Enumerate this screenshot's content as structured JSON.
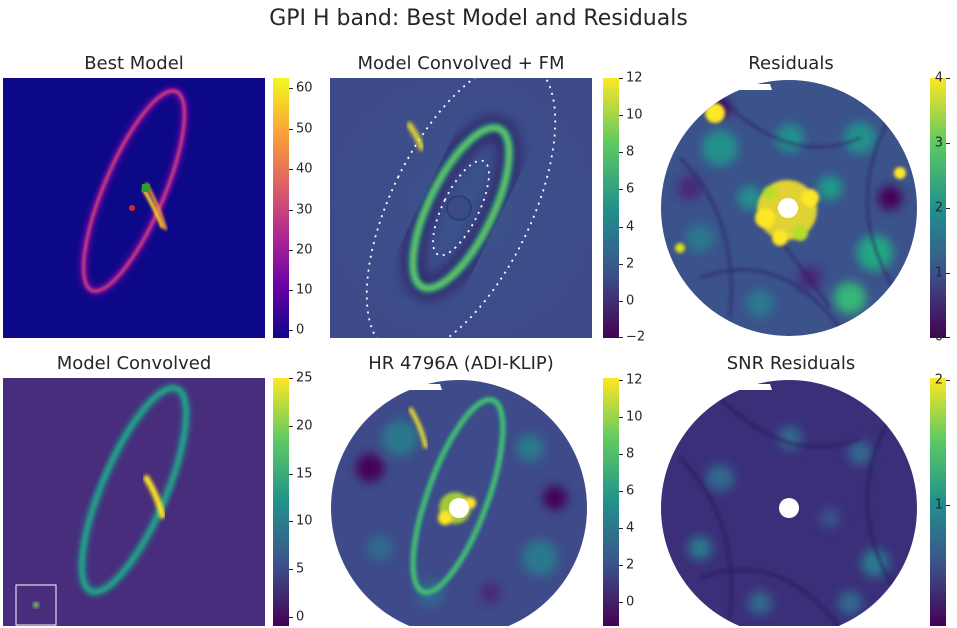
{
  "figure": {
    "title": "GPI H band: Best Model and Residuals"
  },
  "chart_data": [
    {
      "type": "heatmap",
      "title": "Best Model",
      "colormap": "plasma",
      "colorbar": {
        "ticks": [
          "60",
          "50",
          "40",
          "30",
          "20",
          "10",
          "0"
        ],
        "range": [
          -2,
          64
        ]
      }
    },
    {
      "type": "heatmap",
      "title": "Model Convolved + FM",
      "colormap": "viridis",
      "colorbar": {
        "ticks": [
          "12",
          "10",
          "8",
          "6",
          "4",
          "2",
          "0",
          "−2"
        ],
        "range": [
          -2,
          12
        ]
      }
    },
    {
      "type": "heatmap",
      "title": "Residuals",
      "colormap": "viridis",
      "colorbar": {
        "ticks": [
          "4",
          "3",
          "2",
          "1",
          "0"
        ],
        "range": [
          0,
          4
        ]
      }
    },
    {
      "type": "heatmap",
      "title": "Model Convolved",
      "colormap": "viridis",
      "colorbar": {
        "ticks": [
          "25",
          "20",
          "15",
          "10",
          "5",
          "0"
        ],
        "range": [
          -1,
          25
        ]
      }
    },
    {
      "type": "heatmap",
      "title": "HR 4796A (ADI-KLIP)",
      "colormap": "viridis",
      "colorbar": {
        "ticks": [
          "12",
          "10",
          "8",
          "6",
          "4",
          "2",
          "0"
        ],
        "range": [
          -1.5,
          12
        ]
      }
    },
    {
      "type": "heatmap",
      "title": "SNR Residuals",
      "colormap": "viridis",
      "colorbar": {
        "ticks": [
          "2",
          "1"
        ],
        "range": [
          0,
          2
        ]
      }
    }
  ]
}
